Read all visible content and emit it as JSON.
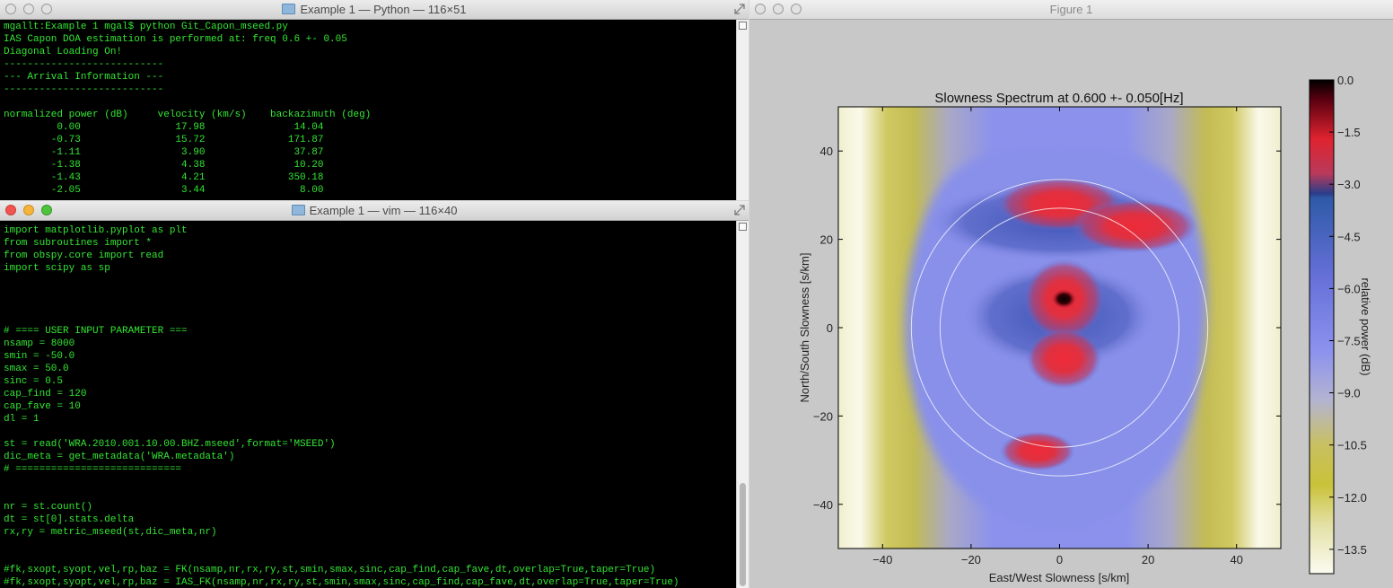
{
  "python_window": {
    "title": "Example 1 — Python — 116×51",
    "lines": [
      "mgallt:Example 1 mgal$ python Git_Capon_mseed.py",
      "IAS Capon DOA estimation is performed at: freq 0.6 +- 0.05",
      "Diagonal Loading On!",
      "---------------------------",
      "--- Arrival Information ---",
      "---------------------------",
      "",
      "normalized power (dB)     velocity (km/s)    backazimuth (deg)",
      "         0.00                17.98               14.04",
      "        -0.73                15.72              171.87",
      "        -1.11                 3.90               37.87",
      "        -1.38                 4.38               10.20",
      "        -1.43                 4.21              350.18",
      "        -2.05                 3.44                8.00"
    ]
  },
  "vim_window": {
    "title": "Example 1 — vim — 116×40",
    "lines": [
      "import matplotlib.pyplot as plt",
      "from subroutines import *",
      "from obspy.core import read",
      "import scipy as sp",
      "",
      "",
      "",
      "",
      "# ==== USER INPUT PARAMETER ===",
      "nsamp = 8000",
      "smin = -50.0",
      "smax = 50.0",
      "sinc = 0.5",
      "cap_find = 120",
      "cap_fave = 10",
      "dl = 1",
      "",
      "st = read('WRA.2010.001.10.00.BHZ.mseed',format='MSEED')",
      "dic_meta = get_metadata('WRA.metadata')",
      "# ============================",
      "",
      "",
      "nr = st.count()",
      "dt = st[0].stats.delta",
      "rx,ry = metric_mseed(st,dic_meta,nr)",
      "",
      "",
      "#fk,sxopt,syopt,vel,rp,baz = FK(nsamp,nr,rx,ry,st,smin,smax,sinc,cap_find,cap_fave,dt,overlap=True,taper=True)",
      "#fk,sxopt,syopt,vel,rp,baz = IAS_FK(nsamp,nr,rx,ry,st,smin,smax,sinc,cap_find,cap_fave,dt,overlap=True,taper=True)"
    ]
  },
  "figure_window": {
    "title": "Figure 1"
  },
  "chart_data": {
    "type": "heatmap",
    "title": "Slowness Spectrum at 0.600 +- 0.050[Hz]",
    "xlabel": "East/West Slowness [s/km]",
    "ylabel": "North/South Slowness [s/km]",
    "colorbar_label": "relative power (dB)",
    "xlim": [
      -50,
      50
    ],
    "ylim": [
      -50,
      50
    ],
    "x_ticks": [
      -40,
      -20,
      0,
      20,
      40
    ],
    "y_ticks": [
      40,
      20,
      0,
      -20,
      -40
    ],
    "x_tick_labels": [
      "−40",
      "−20",
      "0",
      "20",
      "40"
    ],
    "y_tick_labels": [
      "40",
      "20",
      "0",
      "−20",
      "−40"
    ],
    "colorbar_range": [
      -14.2,
      0
    ],
    "colorbar_ticks": [
      0.0,
      -1.5,
      -3.0,
      -4.5,
      -6.0,
      -7.5,
      -9.0,
      -10.5,
      -12.0,
      -13.5
    ],
    "colorbar_tick_labels": [
      "0.0",
      "−1.5",
      "−3.0",
      "−4.5",
      "−6.0",
      "−7.5",
      "−9.0",
      "−10.5",
      "−12.0",
      "−13.5"
    ],
    "circle_radii": [
      27,
      33.5
    ],
    "peaks": [
      {
        "sx": 1,
        "sy": 6.5,
        "db": 0.0
      },
      {
        "sx": 1,
        "sy": -7,
        "db": -1.5
      },
      {
        "sx": -5,
        "sy": -28,
        "db": -1.8
      },
      {
        "sx": 0,
        "sy": 28,
        "db": -2.5
      },
      {
        "sx": 17,
        "sy": 23,
        "db": -2.2
      }
    ]
  }
}
